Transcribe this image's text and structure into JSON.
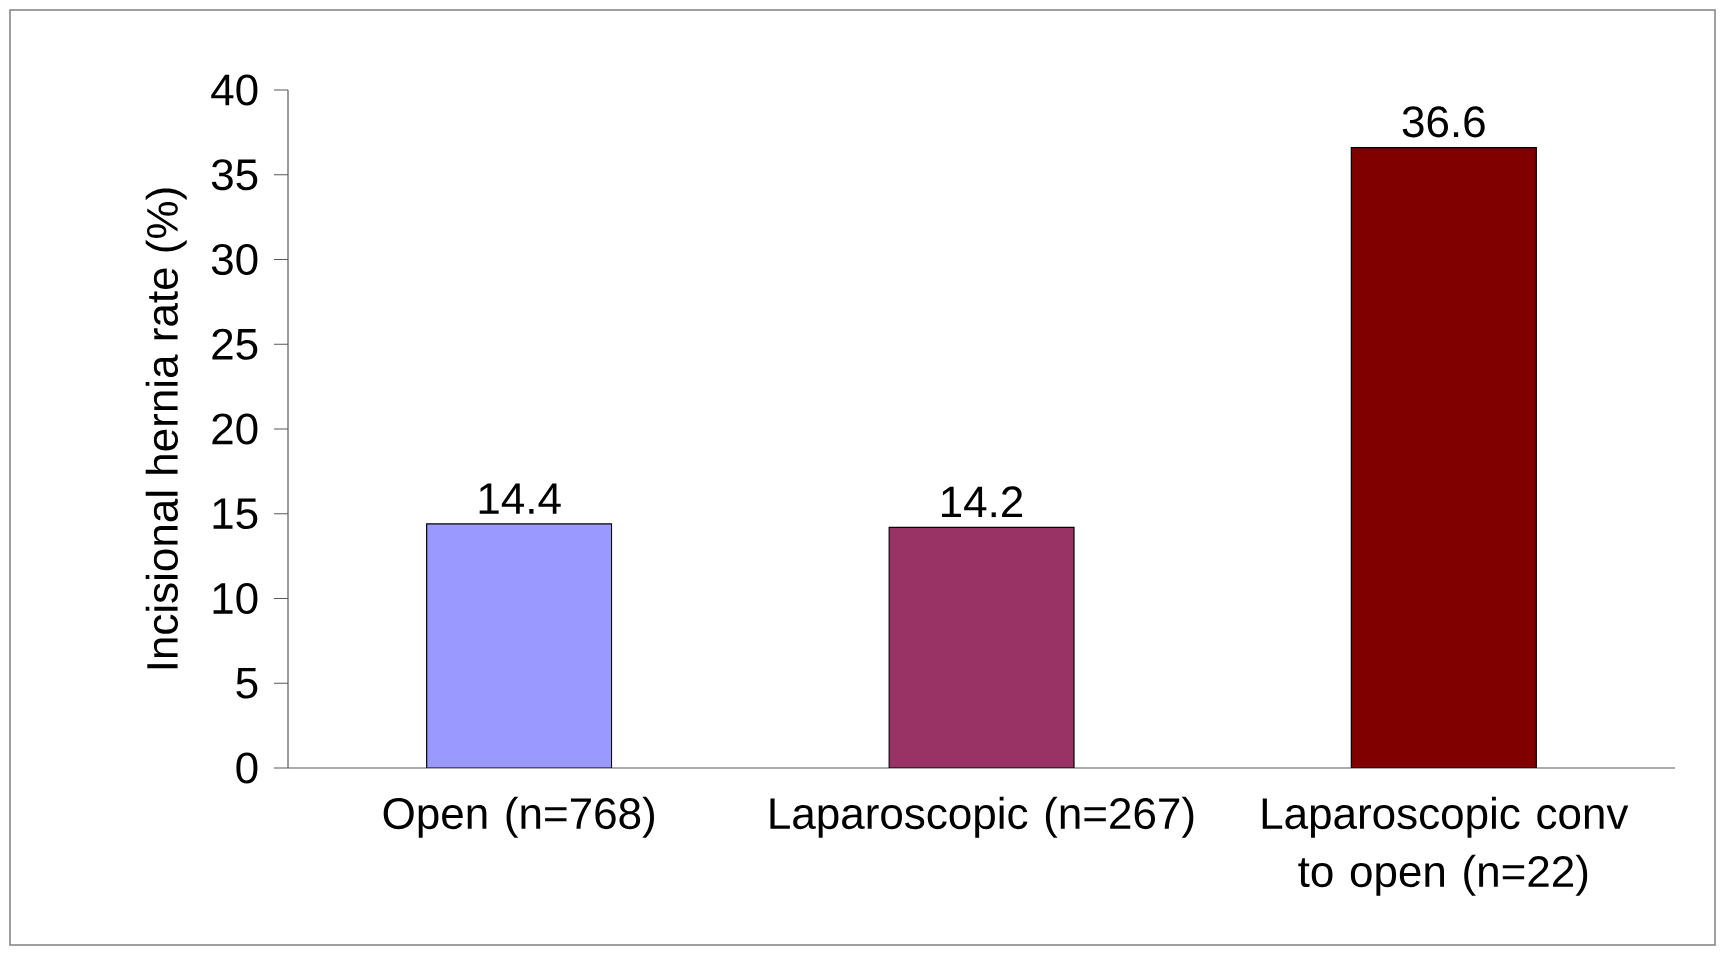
{
  "chart_data": {
    "type": "bar",
    "ylabel": "Incisional hernia rate (%)",
    "categories": [
      "Open (n=768)",
      "Laparoscopic (n=267)",
      "Laparoscopic conv to open (n=22)"
    ],
    "values": [
      14.4,
      14.2,
      36.6
    ],
    "colors": [
      "#9999ff",
      "#993366",
      "#800000"
    ],
    "ylim": [
      0,
      40
    ],
    "yticks": [
      0,
      5,
      10,
      15,
      20,
      25,
      30,
      35,
      40
    ],
    "data_labels": true,
    "grid": false
  }
}
